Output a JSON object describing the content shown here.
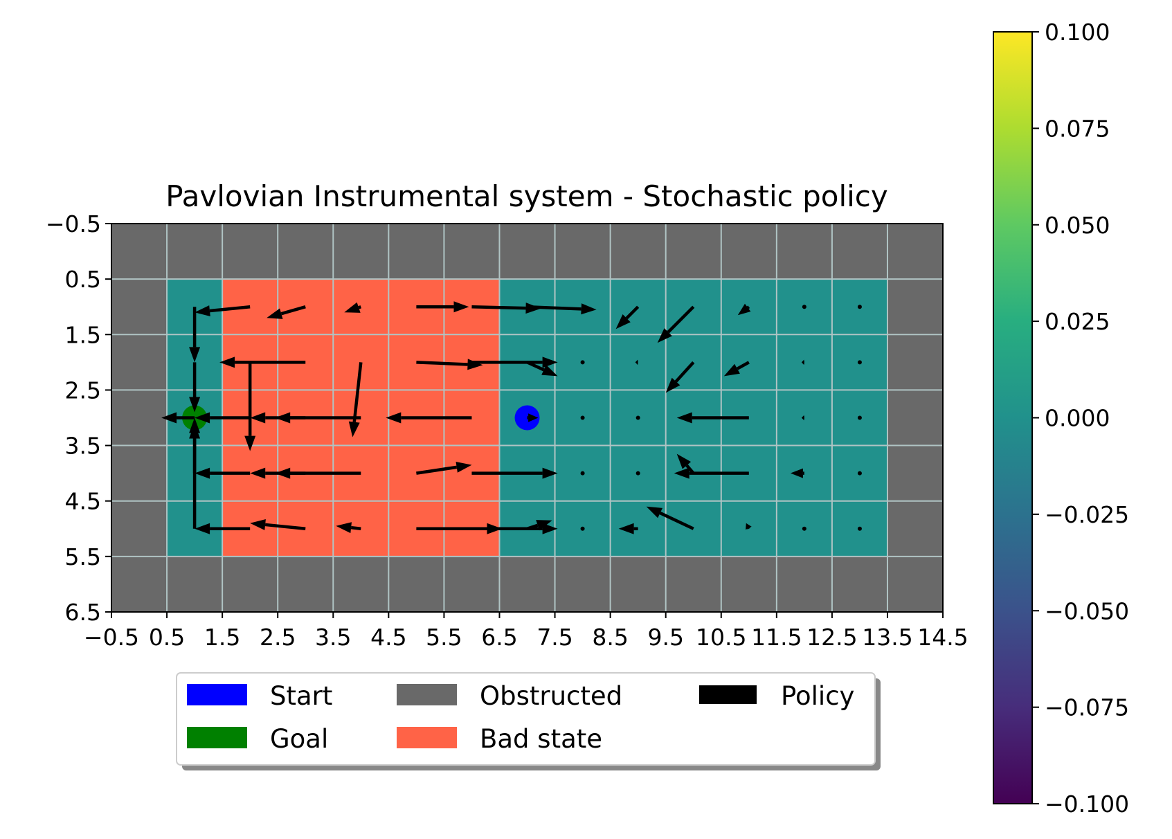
{
  "chart_data": {
    "type": "heatmap",
    "title": "Pavlovian Instrumental system - Stochastic policy",
    "xlabel": "",
    "ylabel": "",
    "xlim": [
      -0.5,
      14.5
    ],
    "ylim": [
      6.5,
      -0.5
    ],
    "x_tick_labels": [
      "−0.5",
      "0.5",
      "1.5",
      "2.5",
      "3.5",
      "4.5",
      "5.5",
      "6.5",
      "7.5",
      "8.5",
      "9.5",
      "10.5",
      "11.5",
      "12.5",
      "13.5",
      "14.5"
    ],
    "y_tick_labels": [
      "−0.5",
      "0.5",
      "1.5",
      "2.5",
      "3.5",
      "4.5",
      "5.5",
      "6.5"
    ],
    "grid": true,
    "colors": {
      "obstructed": "#696969",
      "bad_state": "#ff6347",
      "free": "#21918c",
      "start": "#0000ff",
      "goal": "#008000",
      "policy": "#000000",
      "grid": "#b0c4c4"
    },
    "grid_rows": [
      "OOOOOOOOOOOOOOO",
      "OFBBBBBFFFFFFFO",
      "OFBBBBBFFFFFFFO",
      "OFBBBBBFFFFFFFO",
      "OFBBBBBFFFFFFFO",
      "OFBBBBBFFFFFFFO",
      "OOOOOOOOOOOOOOO"
    ],
    "start": {
      "x": 7,
      "y": 3
    },
    "goal": {
      "x": 1,
      "y": 3
    },
    "policy_arrows": [
      {
        "x": 1,
        "y": 1,
        "dx": 0,
        "dy": 1
      },
      {
        "x": 2,
        "y": 1,
        "dx": -1,
        "dy": 0.1
      },
      {
        "x": 3,
        "y": 1,
        "dx": -0.7,
        "dy": 0.2
      },
      {
        "x": 4,
        "y": 1,
        "dx": -0.3,
        "dy": 0.1
      },
      {
        "x": 5,
        "y": 1,
        "dx": 0.95,
        "dy": 0
      },
      {
        "x": 6,
        "y": 1,
        "dx": 1.25,
        "dy": 0.03
      },
      {
        "x": 7,
        "y": 1,
        "dx": 1.25,
        "dy": 0.05
      },
      {
        "x": 9,
        "y": 1,
        "dx": -0.4,
        "dy": 0.4
      },
      {
        "x": 10,
        "y": 1,
        "dx": -0.65,
        "dy": 0.65
      },
      {
        "x": 11,
        "y": 1,
        "dx": -0.2,
        "dy": 0.15
      },
      {
        "x": 12,
        "y": 1,
        "dx": 0,
        "dy": 0
      },
      {
        "x": 13,
        "y": 1,
        "dx": 0,
        "dy": 0
      },
      {
        "x": 1,
        "y": 2,
        "dx": 0,
        "dy": 0.9
      },
      {
        "x": 2,
        "y": 2,
        "dx": 0,
        "dy": 1.6
      },
      {
        "x": 3,
        "y": 2,
        "dx": -1.55,
        "dy": 0
      },
      {
        "x": 4,
        "y": 2,
        "dx": -0.15,
        "dy": 1.35
      },
      {
        "x": 5,
        "y": 2,
        "dx": 1.2,
        "dy": 0.05
      },
      {
        "x": 6,
        "y": 2,
        "dx": 1.55,
        "dy": 0
      },
      {
        "x": 7,
        "y": 2,
        "dx": 0.55,
        "dy": 0.25
      },
      {
        "x": 8,
        "y": 2,
        "dx": 0,
        "dy": 0
      },
      {
        "x": 9,
        "y": 2,
        "dx": -0.05,
        "dy": 0
      },
      {
        "x": 10,
        "y": 2,
        "dx": -0.5,
        "dy": 0.55
      },
      {
        "x": 11,
        "y": 2,
        "dx": -0.45,
        "dy": 0.25
      },
      {
        "x": 12,
        "y": 2,
        "dx": -0.05,
        "dy": 0
      },
      {
        "x": 13,
        "y": 2,
        "dx": 0,
        "dy": 0
      },
      {
        "x": 1,
        "y": 3,
        "dx": -0.6,
        "dy": 0
      },
      {
        "x": 2,
        "y": 3,
        "dx": -1.0,
        "dy": 0
      },
      {
        "x": 3,
        "y": 3,
        "dx": -1.0,
        "dy": 0
      },
      {
        "x": 4,
        "y": 3,
        "dx": -1.55,
        "dy": 0
      },
      {
        "x": 6,
        "y": 3,
        "dx": -1.55,
        "dy": 0
      },
      {
        "x": 7,
        "y": 3,
        "dx": 0.2,
        "dy": 0
      },
      {
        "x": 8,
        "y": 3,
        "dx": 0,
        "dy": 0
      },
      {
        "x": 9,
        "y": 3,
        "dx": 0,
        "dy": 0
      },
      {
        "x": 11,
        "y": 3,
        "dx": -1.3,
        "dy": 0
      },
      {
        "x": 12,
        "y": 3,
        "dx": -0.05,
        "dy": 0
      },
      {
        "x": 13,
        "y": 3,
        "dx": 0,
        "dy": 0
      },
      {
        "x": 1,
        "y": 4,
        "dx": 0,
        "dy": -0.9
      },
      {
        "x": 2,
        "y": 4,
        "dx": -1.0,
        "dy": 0
      },
      {
        "x": 3,
        "y": 4,
        "dx": -1.0,
        "dy": 0
      },
      {
        "x": 4,
        "y": 4,
        "dx": -1.55,
        "dy": 0
      },
      {
        "x": 5,
        "y": 4,
        "dx": 1.0,
        "dy": -0.15
      },
      {
        "x": 6,
        "y": 4,
        "dx": 1.55,
        "dy": 0
      },
      {
        "x": 8,
        "y": 4,
        "dx": 0,
        "dy": 0
      },
      {
        "x": 9,
        "y": 4,
        "dx": 0,
        "dy": 0
      },
      {
        "x": 10,
        "y": 4,
        "dx": -0.3,
        "dy": -0.35
      },
      {
        "x": 11,
        "y": 4,
        "dx": -1.35,
        "dy": 0
      },
      {
        "x": 12,
        "y": 4,
        "dx": -0.25,
        "dy": 0
      },
      {
        "x": 13,
        "y": 4,
        "dx": 0,
        "dy": 0
      },
      {
        "x": 1,
        "y": 5,
        "dx": 0,
        "dy": -2.0
      },
      {
        "x": 2,
        "y": 5,
        "dx": -1.0,
        "dy": 0
      },
      {
        "x": 3,
        "y": 5,
        "dx": -1.0,
        "dy": -0.1
      },
      {
        "x": 4,
        "y": 5,
        "dx": -0.45,
        "dy": -0.05
      },
      {
        "x": 5,
        "y": 5,
        "dx": 1.55,
        "dy": 0
      },
      {
        "x": 6,
        "y": 5,
        "dx": 1.55,
        "dy": 0
      },
      {
        "x": 7,
        "y": 5,
        "dx": 0.45,
        "dy": -0.15
      },
      {
        "x": 8,
        "y": 5,
        "dx": 0,
        "dy": 0
      },
      {
        "x": 9,
        "y": 5,
        "dx": -0.35,
        "dy": 0
      },
      {
        "x": 10,
        "y": 5,
        "dx": -0.85,
        "dy": -0.4
      },
      {
        "x": 11,
        "y": 5,
        "dx": -0.05,
        "dy": -0.1
      },
      {
        "x": 12,
        "y": 5,
        "dx": 0,
        "dy": 0
      },
      {
        "x": 13,
        "y": 5,
        "dx": 0,
        "dy": 0
      }
    ],
    "legend": {
      "placement": "bottom-center",
      "entries": [
        {
          "label": "Start",
          "color": "#0000ff"
        },
        {
          "label": "Goal",
          "color": "#008000"
        },
        {
          "label": "Obstructed",
          "color": "#696969"
        },
        {
          "label": "Bad state",
          "color": "#ff6347"
        },
        {
          "label": "Policy",
          "color": "#000000"
        }
      ]
    },
    "colorbar": {
      "range": [
        -0.1,
        0.1
      ],
      "tick_labels": [
        "0.100",
        "0.075",
        "0.050",
        "0.025",
        "0.000",
        "−0.025",
        "−0.050",
        "−0.075",
        "−0.100"
      ],
      "colormap": "viridis"
    }
  }
}
